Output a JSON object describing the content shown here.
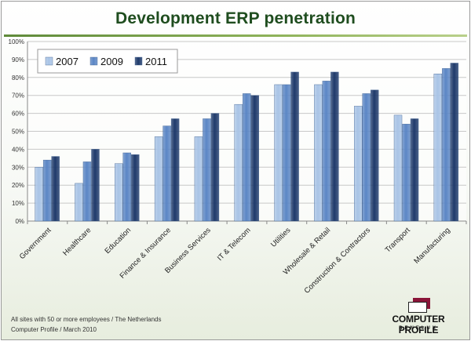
{
  "chart_data": {
    "type": "bar",
    "title": "Development ERP penetration",
    "categories": [
      "Government",
      "Healthcare",
      "Education",
      "Finance & Insurance",
      "Business Services",
      "IT & Telecom",
      "Utilities",
      "Wholesale & Retail",
      "Construction & Contractors",
      "Transport",
      "Manufacturing"
    ],
    "series": [
      {
        "name": "2007",
        "color": "#a9c4e6",
        "values": [
          30,
          21,
          32,
          47,
          47,
          65,
          76,
          76,
          64,
          59,
          82
        ]
      },
      {
        "name": "2009",
        "color": "#5b86c5",
        "values": [
          34,
          33,
          38,
          53,
          57,
          71,
          76,
          78,
          71,
          54,
          85
        ]
      },
      {
        "name": "2011",
        "color": "#1f3a6b",
        "values": [
          36,
          40,
          37,
          57,
          60,
          70,
          83,
          83,
          73,
          57,
          88
        ]
      }
    ],
    "yticks": [
      "0%",
      "10%",
      "20%",
      "30%",
      "40%",
      "50%",
      "60%",
      "70%",
      "80%",
      "90%",
      "100%"
    ],
    "ylim": [
      0,
      100
    ],
    "xlabel": "",
    "ylabel": "",
    "grid": true,
    "legend_position": "top-left"
  },
  "footnote": {
    "line1": "All sites with 50 or more employees  / The Netherlands",
    "line2": "Computer Profile / March 2010"
  },
  "logo": {
    "name": "COMPUTER PROFILE",
    "sub": "BENELUX"
  }
}
